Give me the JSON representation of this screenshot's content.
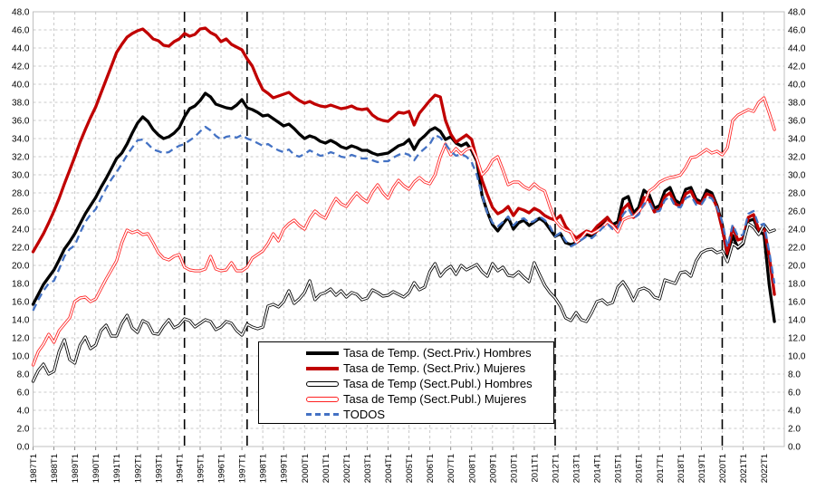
{
  "chart_data": {
    "type": "line",
    "title": "",
    "unit": "percent",
    "x_axis": {
      "tick_labels": [
        "1987T1",
        "1988T1",
        "1989T1",
        "1990T1",
        "1991T1",
        "1992T1",
        "1993T1",
        "1994T1",
        "1995T1",
        "1996T1",
        "1997T1",
        "1998T1",
        "1999T1",
        "2000T1",
        "2001T1",
        "2002T1",
        "2003T1",
        "2004T1",
        "2005T1",
        "2006T1",
        "2007T1",
        "2008T1",
        "2009T1",
        "2010T1",
        "2011T1",
        "2012T1",
        "2013T1",
        "2014T1",
        "2015T1",
        "2016T1",
        "2017T1",
        "2018T1",
        "2019T1",
        "2020T1",
        "2021T1",
        "2022T1"
      ],
      "quarters_start": "1987T1",
      "quarters_end": "2022T3"
    },
    "y_axis": {
      "min": 0,
      "max": 48,
      "step": 2,
      "sides": "both",
      "tick_labels": [
        "0.0",
        "2.0",
        "4.0",
        "6.0",
        "8.0",
        "10.0",
        "12.0",
        "14.0",
        "16.0",
        "18.0",
        "20.0",
        "22.0",
        "24.0",
        "26.0",
        "28.0",
        "30.0",
        "32.0",
        "34.0",
        "36.0",
        "38.0",
        "40.0",
        "42.0",
        "44.0",
        "46.0",
        "48.0"
      ]
    },
    "grid": {
      "visible": true,
      "color": "#C9C9C9",
      "dashed": true
    },
    "reference_lines": {
      "color": "#000000",
      "dashed": true,
      "positions": [
        "1994T2",
        "1997T2",
        "2012T1",
        "2020T1"
      ]
    },
    "legend_position": "inside-bottom-center",
    "series": [
      {
        "name": "Tasa de Temp. (Sect.Priv.) Hombres",
        "style": "thick",
        "color": "#000000",
        "values": [
          15.7,
          16.8,
          17.9,
          18.7,
          19.5,
          20.6,
          21.8,
          22.6,
          23.5,
          24.6,
          25.7,
          26.6,
          27.5,
          28.6,
          29.6,
          30.7,
          31.8,
          32.4,
          33.4,
          34.6,
          35.7,
          36.4,
          35.9,
          35.0,
          34.4,
          34.0,
          34.2,
          34.6,
          35.2,
          36.4,
          37.3,
          37.6,
          38.2,
          39.0,
          38.6,
          37.8,
          37.6,
          37.4,
          37.3,
          37.7,
          38.3,
          37.4,
          37.2,
          36.9,
          36.5,
          36.6,
          36.2,
          35.8,
          35.4,
          35.6,
          35.1,
          34.5,
          34.0,
          34.3,
          34.1,
          33.7,
          33.5,
          33.8,
          33.5,
          33.1,
          32.9,
          33.2,
          33.0,
          32.7,
          32.7,
          32.4,
          32.2,
          32.3,
          32.4,
          32.8,
          33.2,
          33.4,
          33.9,
          32.8,
          33.8,
          34.3,
          34.9,
          35.2,
          34.8,
          33.9,
          34.2,
          33.5,
          33.2,
          33.5,
          32.7,
          31.5,
          27.7,
          25.9,
          24.5,
          23.8,
          24.6,
          25.3,
          24.0,
          24.7,
          25.0,
          24.4,
          24.8,
          25.2,
          24.8,
          24.0,
          23.2,
          23.5,
          22.5,
          22.3,
          22.5,
          22.9,
          23.4,
          23.2,
          23.8,
          24.6,
          25.3,
          24.5,
          24.8,
          27.3,
          27.6,
          25.8,
          26.4,
          28.3,
          27.8,
          26.3,
          26.6,
          28.2,
          28.6,
          27.2,
          26.8,
          28.4,
          28.6,
          27.3,
          27.0,
          28.3,
          28.0,
          26.6,
          24.5,
          20.9,
          23.3,
          21.9,
          22.4,
          24.9,
          25.1,
          23.8,
          23.4,
          17.8,
          13.8
        ]
      },
      {
        "name": "Tasa de Temp. (Sect.Priv.) Mujeres",
        "style": "thick",
        "color": "#C00000",
        "values": [
          21.5,
          22.5,
          23.5,
          24.7,
          26.0,
          27.4,
          29.0,
          30.5,
          32.0,
          33.6,
          35.0,
          36.3,
          37.5,
          39.0,
          40.5,
          42.0,
          43.5,
          44.4,
          45.2,
          45.6,
          45.9,
          46.1,
          45.6,
          45.0,
          44.8,
          44.3,
          44.2,
          44.7,
          45.0,
          45.6,
          45.3,
          45.5,
          46.1,
          46.2,
          45.7,
          45.4,
          44.7,
          45.0,
          44.4,
          44.1,
          43.8,
          42.8,
          42.0,
          40.6,
          39.4,
          39.0,
          38.5,
          38.7,
          38.9,
          39.1,
          38.6,
          38.2,
          37.9,
          38.1,
          37.8,
          37.6,
          37.5,
          37.7,
          37.5,
          37.3,
          37.4,
          37.6,
          37.3,
          37.2,
          37.3,
          36.6,
          36.2,
          36.0,
          35.9,
          36.4,
          36.9,
          36.8,
          37.0,
          35.5,
          36.8,
          37.5,
          38.2,
          38.8,
          38.6,
          36.0,
          34.5,
          33.6,
          34.0,
          34.4,
          33.9,
          31.7,
          29.4,
          27.8,
          26.4,
          25.7,
          26.0,
          26.5,
          25.5,
          26.3,
          26.1,
          25.8,
          26.3,
          26.0,
          25.5,
          25.2,
          25.0,
          25.5,
          24.3,
          23.6,
          23.0,
          23.4,
          23.8,
          23.6,
          24.3,
          24.8,
          25.3,
          24.4,
          24.2,
          26.2,
          26.8,
          25.3,
          25.8,
          27.5,
          27.2,
          25.9,
          26.2,
          27.6,
          28.0,
          26.8,
          26.5,
          27.9,
          28.2,
          27.0,
          26.8,
          27.9,
          27.7,
          26.4,
          24.0,
          21.3,
          24.2,
          22.8,
          23.0,
          25.3,
          25.6,
          23.9,
          24.2,
          21.0,
          16.8
        ]
      },
      {
        "name": "Tasa de Temp (Sect.Publ.) Hombres",
        "style": "double",
        "color": "#000000",
        "values": [
          7.2,
          8.4,
          9.1,
          8.0,
          8.3,
          10.5,
          11.8,
          9.6,
          9.2,
          11.2,
          12.1,
          10.8,
          11.2,
          12.8,
          13.4,
          12.2,
          12.2,
          13.6,
          14.5,
          13.1,
          12.6,
          13.9,
          13.6,
          12.5,
          12.4,
          13.3,
          14.0,
          13.1,
          13.4,
          14.1,
          13.9,
          13.2,
          13.6,
          14.0,
          13.8,
          12.9,
          13.2,
          13.8,
          13.6,
          12.8,
          12.3,
          13.5,
          13.2,
          13.0,
          13.2,
          15.5,
          15.7,
          15.4,
          16.0,
          17.2,
          15.8,
          16.3,
          17.0,
          18.3,
          16.2,
          16.8,
          17.0,
          17.4,
          16.7,
          17.2,
          16.5,
          17.0,
          16.8,
          16.2,
          16.4,
          17.3,
          17.0,
          16.6,
          16.7,
          17.1,
          16.8,
          16.5,
          17.0,
          18.1,
          17.3,
          17.6,
          19.3,
          20.2,
          18.8,
          19.5,
          19.9,
          19.0,
          20.0,
          19.5,
          19.8,
          20.1,
          19.3,
          18.8,
          20.2,
          19.4,
          19.8,
          18.9,
          18.8,
          19.3,
          18.7,
          18.2,
          20.3,
          19.0,
          17.8,
          17.0,
          16.4,
          15.5,
          14.2,
          13.9,
          14.8,
          14.0,
          13.8,
          14.8,
          16.0,
          16.2,
          15.7,
          15.9,
          17.6,
          18.2,
          17.3,
          16.1,
          17.3,
          17.5,
          17.2,
          16.5,
          16.3,
          18.4,
          18.2,
          18.0,
          19.2,
          19.3,
          18.8,
          20.5,
          21.4,
          21.7,
          21.8,
          21.4,
          21.6,
          20.4,
          22.4,
          22.0,
          22.5,
          24.6,
          24.2,
          23.4,
          24.5,
          23.7,
          23.9
        ]
      },
      {
        "name": "Tasa de Temp (Sect.Publ.) Mujeres",
        "style": "double",
        "color": "#FF2222",
        "values": [
          9.0,
          10.5,
          11.3,
          12.4,
          11.5,
          12.8,
          13.5,
          14.2,
          16.0,
          16.4,
          16.5,
          16.0,
          16.3,
          17.4,
          18.5,
          19.5,
          20.5,
          22.5,
          23.9,
          23.6,
          23.8,
          23.4,
          23.5,
          22.5,
          21.4,
          20.8,
          20.6,
          21.0,
          21.2,
          19.8,
          19.5,
          19.4,
          19.4,
          19.6,
          21.0,
          19.6,
          19.4,
          19.5,
          20.3,
          19.4,
          19.4,
          19.8,
          20.8,
          21.2,
          21.6,
          22.4,
          23.5,
          22.7,
          24.0,
          24.6,
          25.0,
          24.4,
          24.0,
          25.2,
          26.0,
          25.5,
          25.2,
          26.4,
          27.4,
          26.8,
          26.5,
          27.3,
          28.0,
          27.4,
          27.0,
          28.1,
          28.9,
          28.0,
          27.4,
          28.6,
          29.4,
          28.8,
          28.4,
          29.2,
          29.7,
          29.2,
          29.0,
          30.0,
          32.0,
          33.4,
          32.2,
          32.9,
          32.3,
          32.8,
          33.0,
          31.8,
          30.0,
          30.6,
          31.6,
          32.0,
          30.5,
          28.9,
          29.2,
          29.2,
          28.7,
          28.4,
          29.0,
          28.5,
          28.2,
          26.5,
          25.0,
          24.3,
          23.9,
          23.7,
          22.5,
          23.0,
          23.7,
          23.5,
          23.8,
          24.2,
          24.8,
          24.4,
          23.7,
          25.0,
          25.3,
          25.4,
          26.0,
          26.7,
          28.2,
          28.6,
          29.2,
          29.5,
          29.7,
          29.8,
          30.0,
          30.8,
          31.9,
          32.0,
          32.4,
          32.8,
          32.4,
          32.6,
          32.2,
          33.0,
          36.0,
          36.6,
          36.9,
          37.2,
          37.0,
          38.0,
          38.5,
          36.8,
          35.0
        ]
      },
      {
        "name": "TODOS",
        "style": "dashed",
        "color": "#4472C4",
        "values": [
          15.0,
          16.2,
          17.2,
          18.0,
          18.3,
          19.6,
          21.0,
          21.8,
          22.2,
          23.6,
          24.8,
          25.6,
          26.2,
          27.4,
          28.5,
          29.5,
          30.3,
          31.2,
          32.2,
          33.0,
          33.8,
          33.9,
          33.4,
          32.8,
          32.6,
          32.4,
          32.5,
          32.9,
          33.2,
          33.4,
          33.8,
          34.2,
          34.8,
          35.3,
          34.9,
          34.3,
          33.9,
          34.2,
          34.3,
          34.1,
          34.4,
          34.0,
          33.8,
          33.5,
          33.2,
          33.4,
          33.0,
          32.7,
          32.5,
          32.8,
          32.2,
          32.0,
          32.3,
          32.7,
          32.4,
          32.1,
          32.2,
          32.5,
          32.3,
          32.0,
          31.9,
          32.2,
          32.0,
          31.8,
          31.8,
          31.6,
          31.4,
          31.5,
          31.5,
          31.9,
          32.2,
          32.4,
          32.2,
          31.6,
          32.4,
          32.9,
          33.4,
          34.4,
          34.1,
          33.4,
          32.6,
          32.1,
          32.3,
          32.0,
          31.4,
          30.0,
          27.7,
          25.8,
          24.7,
          24.3,
          24.8,
          25.4,
          24.4,
          25.0,
          25.2,
          24.7,
          24.9,
          25.4,
          25.0,
          24.3,
          23.2,
          23.6,
          22.7,
          22.1,
          22.4,
          22.8,
          23.2,
          23.0,
          23.5,
          24.1,
          24.6,
          24.0,
          24.2,
          25.6,
          26.3,
          25.2,
          25.6,
          26.8,
          27.0,
          25.9,
          26.0,
          27.2,
          27.6,
          26.5,
          26.4,
          27.4,
          27.7,
          26.7,
          26.7,
          27.6,
          27.4,
          26.4,
          24.8,
          22.0,
          24.5,
          23.2,
          23.4,
          25.7,
          26.0,
          24.4,
          24.6,
          21.5,
          18.0
        ]
      }
    ]
  }
}
